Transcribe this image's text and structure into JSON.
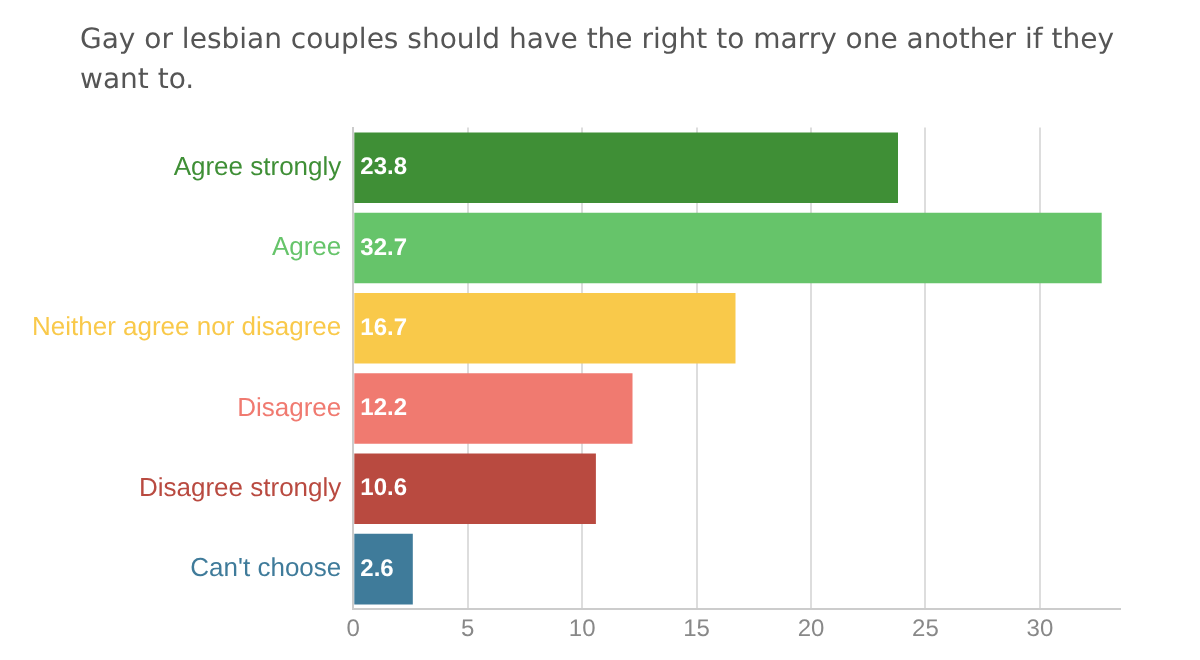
{
  "chart_data": {
    "type": "bar",
    "orientation": "horizontal",
    "title": "Gay or lesbian couples should have the right to marry one another if they want to.",
    "categories": [
      "Agree strongly",
      "Agree",
      "Neither agree nor disagree",
      "Disagree",
      "Disagree strongly",
      "Can't choose"
    ],
    "values": [
      23.8,
      32.7,
      16.7,
      12.2,
      10.6,
      2.6
    ],
    "colors": [
      "#3f8f36",
      "#66c46a",
      "#f9c94a",
      "#f07a70",
      "#b94a40",
      "#3f7b9a"
    ],
    "xlim": [
      0,
      33.5
    ],
    "xticks": [
      0,
      5,
      10,
      15,
      20,
      25,
      30
    ],
    "grid": "x",
    "data_labels": true
  }
}
